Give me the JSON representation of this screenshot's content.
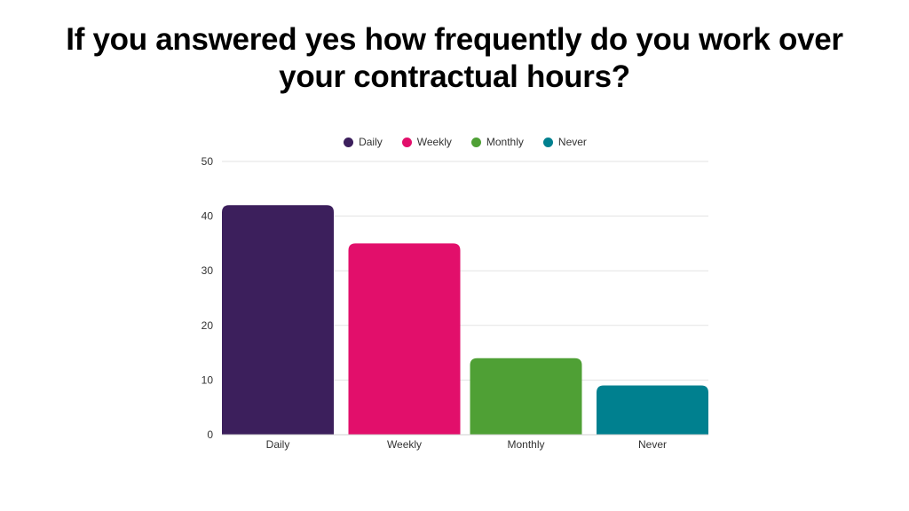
{
  "title": "If you answered yes how frequently do you work over your contractual hours?",
  "chart_data": {
    "type": "bar",
    "categories": [
      "Daily",
      "Weekly",
      "Monthly",
      "Never"
    ],
    "values": [
      42,
      35,
      14,
      9
    ],
    "colors": [
      "#3c1f5c",
      "#e20f6b",
      "#4fa035",
      "#00808f"
    ],
    "legend": [
      "Daily",
      "Weekly",
      "Monthly",
      "Never"
    ],
    "legend_position": "top",
    "ylim": [
      0,
      50
    ],
    "yticks": [
      0,
      10,
      20,
      30,
      40,
      50
    ],
    "grid": true
  }
}
